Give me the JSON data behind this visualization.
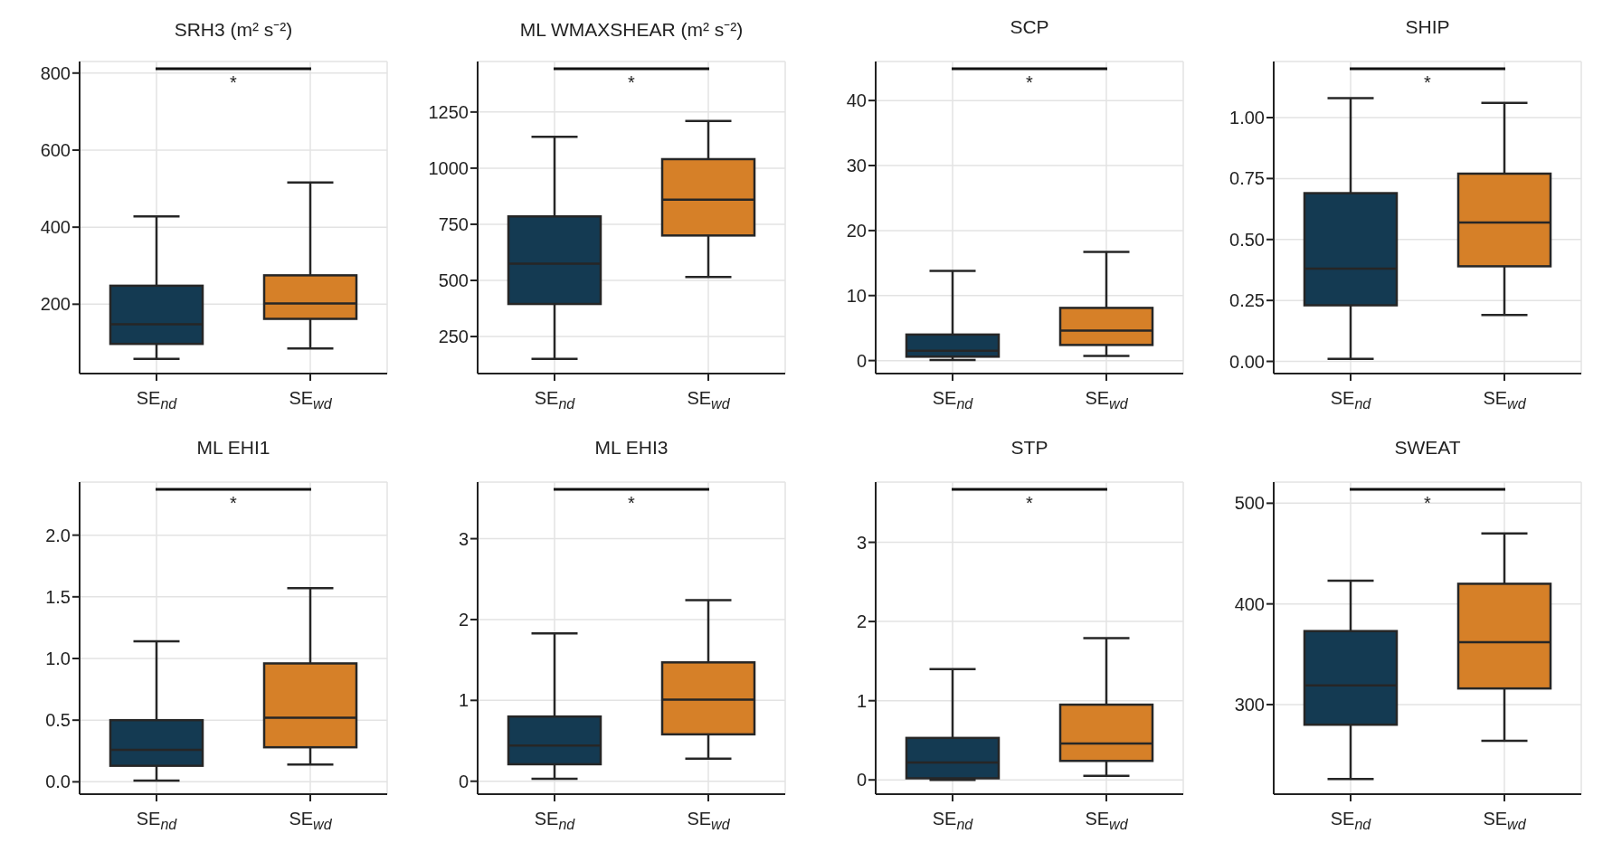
{
  "chart_data": [
    {
      "type": "box",
      "title": "SRH3 (m² s⁻²)",
      "categories": [
        "SE$_{nd}$",
        "SE$_{wd}$"
      ],
      "colors": [
        "#143a52",
        "#d68028"
      ],
      "ylim": [
        20,
        830
      ],
      "yticks": [
        200,
        400,
        600,
        800
      ],
      "grid": true,
      "annotations": [
        "*"
      ],
      "boxes": [
        {
          "low": 58,
          "q1": 97,
          "median": 148,
          "q3": 248,
          "high": 428
        },
        {
          "low": 85,
          "q1": 162,
          "median": 202,
          "q3": 275,
          "high": 516
        }
      ]
    },
    {
      "type": "box",
      "title": "ML WMAXSHEAR (m² s⁻²)",
      "categories": [
        "SE$_{nd}$",
        "SE$_{wd}$"
      ],
      "colors": [
        "#143a52",
        "#d68028"
      ],
      "ylim": [
        85,
        1475
      ],
      "yticks": [
        250,
        500,
        750,
        1000,
        1250
      ],
      "grid": true,
      "annotations": [
        "*"
      ],
      "boxes": [
        {
          "low": 150,
          "q1": 395,
          "median": 575,
          "q3": 785,
          "high": 1140
        },
        {
          "low": 515,
          "q1": 700,
          "median": 860,
          "q3": 1040,
          "high": 1210
        }
      ]
    },
    {
      "type": "box",
      "title": "SCP",
      "categories": [
        "SE$_{nd}$",
        "SE$_{wd}$"
      ],
      "colors": [
        "#143a52",
        "#d68028"
      ],
      "ylim": [
        -2,
        46
      ],
      "yticks": [
        0,
        10,
        20,
        30,
        40
      ],
      "grid": true,
      "annotations": [
        "*"
      ],
      "boxes": [
        {
          "low": 0.1,
          "q1": 0.6,
          "median": 1.5,
          "q3": 4.0,
          "high": 13.8
        },
        {
          "low": 0.7,
          "q1": 2.4,
          "median": 4.6,
          "q3": 8.1,
          "high": 16.7
        }
      ]
    },
    {
      "type": "box",
      "title": "SHIP",
      "categories": [
        "SE$_{nd}$",
        "SE$_{wd}$"
      ],
      "colors": [
        "#143a52",
        "#d68028"
      ],
      "ylim": [
        -0.05,
        1.23
      ],
      "yticks": [
        {
          "value": 0,
          "label": "0.00"
        },
        {
          "value": 0.25,
          "label": "0.25"
        },
        {
          "value": 0.5,
          "label": "0.50"
        },
        {
          "value": 0.75,
          "label": "0.75"
        },
        {
          "value": 1,
          "label": "1.00"
        }
      ],
      "grid": true,
      "annotations": [
        "*"
      ],
      "boxes": [
        {
          "low": 0.01,
          "q1": 0.23,
          "median": 0.38,
          "q3": 0.69,
          "high": 1.08
        },
        {
          "low": 0.19,
          "q1": 0.39,
          "median": 0.57,
          "q3": 0.77,
          "high": 1.06
        }
      ]
    },
    {
      "type": "box",
      "title": "ML EHI1",
      "categories": [
        "SE$_{nd}$",
        "SE$_{wd}$"
      ],
      "colors": [
        "#143a52",
        "#d68028"
      ],
      "ylim": [
        -0.1,
        2.43
      ],
      "yticks": [
        {
          "value": 0,
          "label": "0.0"
        },
        0.5,
        {
          "value": 1,
          "label": "1.0"
        },
        1.5,
        {
          "value": 2,
          "label": "2.0"
        }
      ],
      "grid": true,
      "annotations": [
        "*"
      ],
      "boxes": [
        {
          "low": 0.01,
          "q1": 0.13,
          "median": 0.26,
          "q3": 0.5,
          "high": 1.14
        },
        {
          "low": 0.14,
          "q1": 0.28,
          "median": 0.52,
          "q3": 0.96,
          "high": 1.57
        }
      ]
    },
    {
      "type": "box",
      "title": "ML EHI3",
      "categories": [
        "SE$_{nd}$",
        "SE$_{wd}$"
      ],
      "colors": [
        "#143a52",
        "#d68028"
      ],
      "ylim": [
        -0.16,
        3.7
      ],
      "yticks": [
        0,
        1,
        2,
        3
      ],
      "grid": true,
      "annotations": [
        "*"
      ],
      "boxes": [
        {
          "low": 0.03,
          "q1": 0.21,
          "median": 0.44,
          "q3": 0.8,
          "high": 1.83
        },
        {
          "low": 0.28,
          "q1": 0.58,
          "median": 1.01,
          "q3": 1.47,
          "high": 2.24
        }
      ]
    },
    {
      "type": "box",
      "title": "STP",
      "categories": [
        "SE$_{nd}$",
        "SE$_{wd}$"
      ],
      "colors": [
        "#143a52",
        "#d68028"
      ],
      "ylim": [
        -0.18,
        3.76
      ],
      "yticks": [
        0,
        1,
        2,
        3
      ],
      "grid": true,
      "annotations": [
        "*"
      ],
      "boxes": [
        {
          "low": 0,
          "q1": 0.02,
          "median": 0.22,
          "q3": 0.53,
          "high": 1.4
        },
        {
          "low": 0.05,
          "q1": 0.24,
          "median": 0.46,
          "q3": 0.95,
          "high": 1.79
        }
      ]
    },
    {
      "type": "box",
      "title": "SWEAT",
      "categories": [
        "SE$_{nd}$",
        "SE$_{wd}$"
      ],
      "colors": [
        "#143a52",
        "#d68028"
      ],
      "ylim": [
        211,
        521
      ],
      "yticks": [
        300,
        400,
        500
      ],
      "grid": true,
      "annotations": [
        "*"
      ],
      "boxes": [
        {
          "low": 226,
          "q1": 280,
          "median": 319,
          "q3": 373,
          "high": 423
        },
        {
          "low": 264,
          "q1": 316,
          "median": 362,
          "q3": 420,
          "high": 470
        }
      ]
    }
  ]
}
